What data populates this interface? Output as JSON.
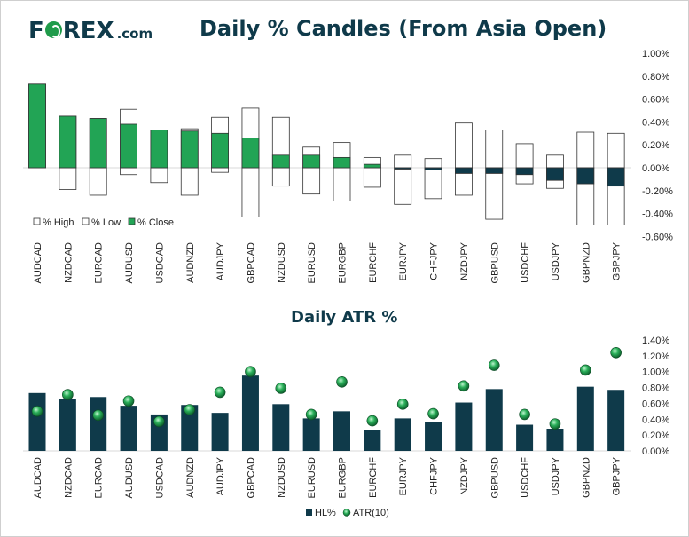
{
  "logo": {
    "prefix": "F",
    "suffix": "REX",
    "dotcom": ".com"
  },
  "colors": {
    "navy": "#0f3a4a",
    "green": "#22a455",
    "border": "#333333",
    "axis": "#d9d9d9"
  },
  "chart_data": [
    {
      "type": "bar",
      "title": "Daily % Candles (From Asia Open)",
      "categories": [
        "AUDCAD",
        "NZDCAD",
        "EURCAD",
        "AUDUSD",
        "USDCAD",
        "AUDNZD",
        "AUDJPY",
        "GBPCAD",
        "NZDUSD",
        "EURUSD",
        "EURGBP",
        "EURCHF",
        "EURJPY",
        "CHFJPY",
        "NZDJPY",
        "GBPUSD",
        "USDCHF",
        "USDJPY",
        "GBPNZD",
        "GBPJPY"
      ],
      "series": [
        {
          "name": "% High",
          "values": [
            0.73,
            0.45,
            0.43,
            0.51,
            0.33,
            0.34,
            0.44,
            0.52,
            0.44,
            0.18,
            0.22,
            0.09,
            0.11,
            0.08,
            0.39,
            0.33,
            0.21,
            0.11,
            0.31,
            0.3
          ]
        },
        {
          "name": "% Low",
          "values": [
            0.0,
            -0.19,
            -0.24,
            -0.06,
            -0.13,
            -0.24,
            -0.04,
            -0.43,
            -0.16,
            -0.23,
            -0.29,
            -0.17,
            -0.32,
            -0.27,
            -0.24,
            -0.45,
            -0.14,
            -0.18,
            -0.5,
            -0.5
          ]
        },
        {
          "name": "% Close",
          "values": [
            0.73,
            0.45,
            0.43,
            0.38,
            0.33,
            0.32,
            0.3,
            0.26,
            0.11,
            0.11,
            0.09,
            0.03,
            -0.01,
            -0.02,
            -0.05,
            -0.05,
            -0.06,
            -0.11,
            -0.14,
            -0.16
          ]
        }
      ],
      "ylim": [
        -0.6,
        1.0
      ],
      "ticks": [
        1.0,
        0.8,
        0.6,
        0.4,
        0.2,
        0.0,
        -0.2,
        -0.4,
        -0.6
      ],
      "tick_labels": [
        "1.00%",
        "0.80%",
        "0.60%",
        "0.40%",
        "0.20%",
        "0.00%",
        "-0.20%",
        "-0.40%",
        "-0.60%"
      ],
      "legend_position": "bottom-left"
    },
    {
      "type": "bar",
      "title": "Daily ATR %",
      "categories": [
        "AUDCAD",
        "NZDCAD",
        "EURCAD",
        "AUDUSD",
        "USDCAD",
        "AUDNZD",
        "AUDJPY",
        "GBPCAD",
        "NZDUSD",
        "EURUSD",
        "EURGBP",
        "EURCHF",
        "EURJPY",
        "CHFJPY",
        "NZDJPY",
        "GBPUSD",
        "USDCHF",
        "USDJPY",
        "GBPNZD",
        "GBPJPY"
      ],
      "series": [
        {
          "name": "HL%",
          "values": [
            0.73,
            0.65,
            0.68,
            0.57,
            0.46,
            0.58,
            0.48,
            0.95,
            0.59,
            0.41,
            0.5,
            0.26,
            0.41,
            0.36,
            0.61,
            0.78,
            0.33,
            0.28,
            0.81,
            0.77
          ]
        },
        {
          "name": "ATR(10)",
          "values": [
            0.5,
            0.71,
            0.45,
            0.63,
            0.37,
            0.52,
            0.74,
            1.0,
            0.79,
            0.46,
            0.87,
            0.38,
            0.59,
            0.47,
            0.82,
            1.08,
            0.46,
            0.34,
            1.02,
            1.24
          ]
        }
      ],
      "ylim": [
        0.0,
        1.4
      ],
      "ticks": [
        1.4,
        1.2,
        1.0,
        0.8,
        0.6,
        0.4,
        0.2,
        0.0
      ],
      "tick_labels": [
        "1.40%",
        "1.20%",
        "1.00%",
        "0.80%",
        "0.60%",
        "0.40%",
        "0.20%",
        "0.00%"
      ],
      "legend_position": "bottom-center"
    }
  ]
}
